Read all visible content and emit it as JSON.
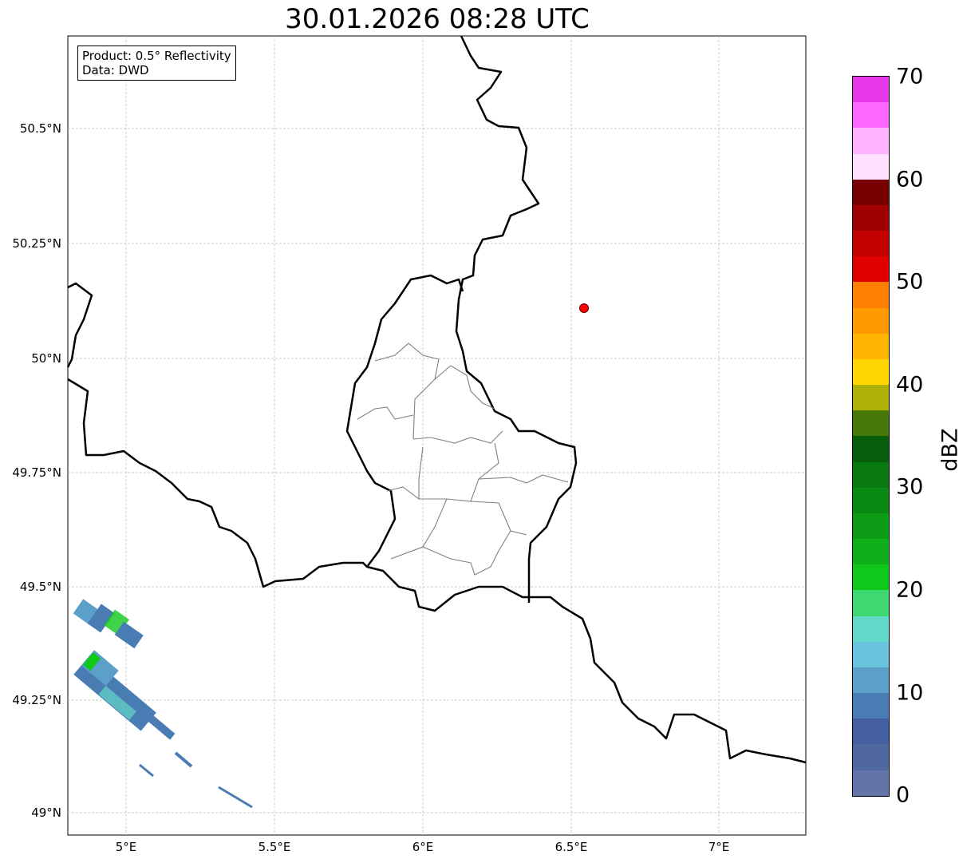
{
  "title": "30.01.2026 08:28 UTC",
  "info": {
    "product": "Product: 0.5° Reflectivity",
    "data": "Data: DWD"
  },
  "lat_labels": [
    "50.5°N",
    "50.25°N",
    "50°N",
    "49.75°N",
    "49.5°N",
    "49.25°N",
    "49°N"
  ],
  "lon_labels": [
    "5°E",
    "5.5°E",
    "6°E",
    "6.5°E",
    "7°E"
  ],
  "colorbar": {
    "label": "dBZ",
    "ticks": [
      "70",
      "60",
      "50",
      "40",
      "30",
      "20",
      "10",
      "0"
    ],
    "colors_top_to_bottom": [
      "#e838ec",
      "#ff66ff",
      "#ffb3ff",
      "#ffe0ff",
      "#780000",
      "#a00000",
      "#c40000",
      "#e00000",
      "#ff7f00",
      "#ff9a00",
      "#ffb400",
      "#ffd700",
      "#b0b00a",
      "#487808",
      "#085e0a",
      "#087810",
      "#0a8a14",
      "#0c9c16",
      "#0eb01a",
      "#10c81a",
      "#3ed870",
      "#62d8c8",
      "#68c4dc",
      "#5aa0c8",
      "#4a7cb4",
      "#4460a0",
      "#5068a0",
      "#6474a8"
    ]
  },
  "marker_color": "#ff0000"
}
